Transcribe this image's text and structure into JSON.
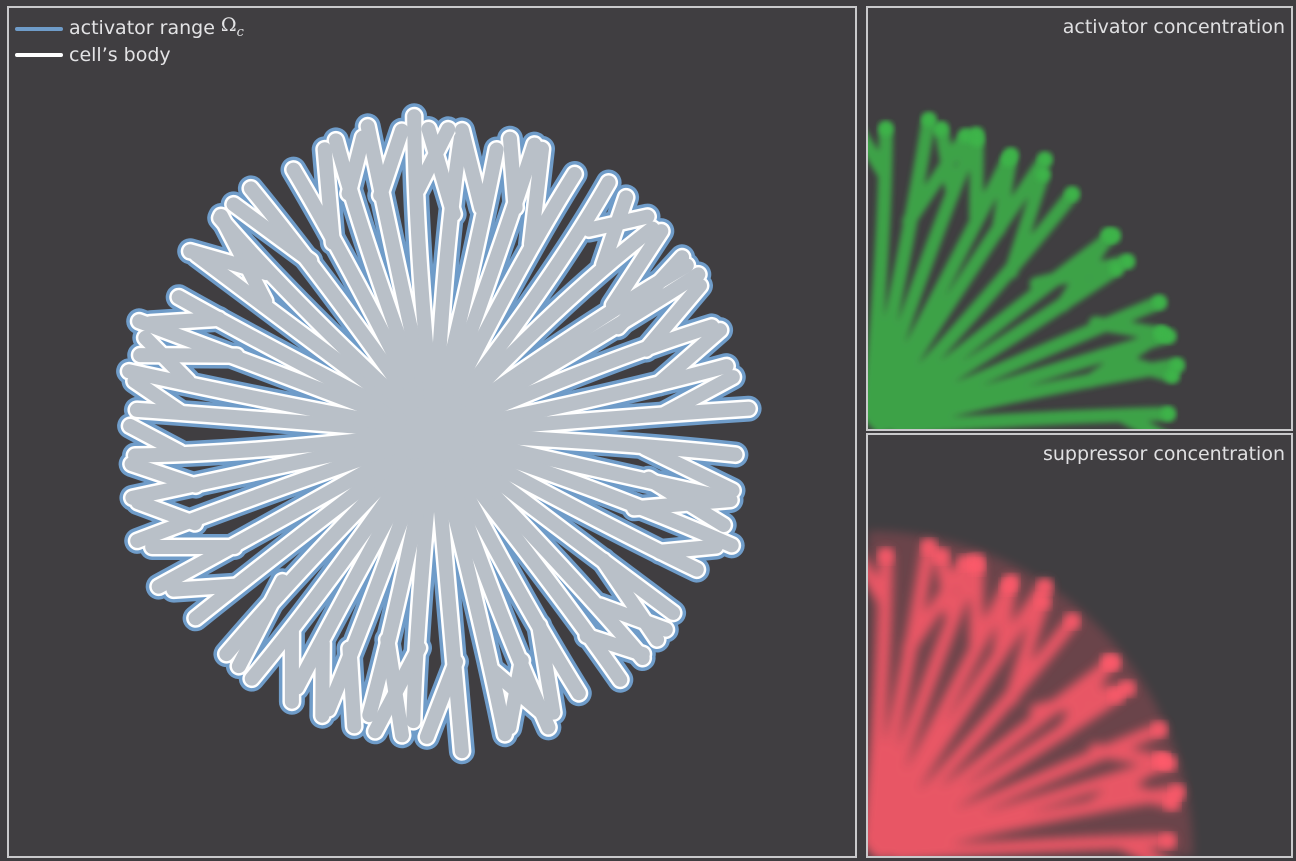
{
  "legend": {
    "activator_label": "activator range",
    "activator_symbol": "Ω",
    "activator_subscript": "c",
    "body_label": "cell’s body"
  },
  "panels": {
    "activator_title": "activator concentration",
    "suppressor_title": "suppressor concentration"
  },
  "colors": {
    "background": "#403e41",
    "border": "#c9c9cb",
    "activator_range": "#6f9cc9",
    "cell_body": "#ffffff",
    "cell_fill": "#b9c0c8",
    "activator": "#3cb44a",
    "suppressor": "#ff5a6a"
  }
}
